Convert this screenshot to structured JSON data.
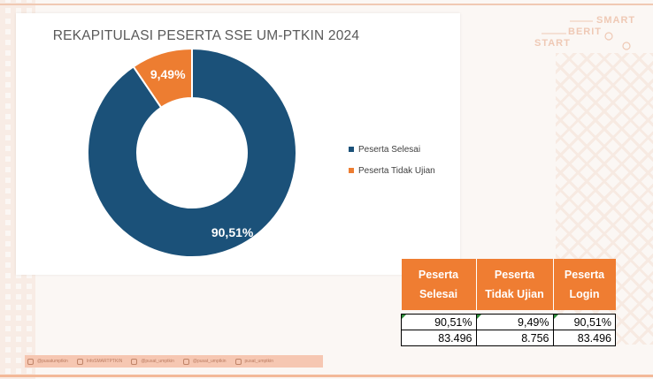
{
  "chart_data": {
    "type": "pie",
    "style": "donut",
    "title": "REKAPITULASI PESERTA SSE UM-PTKIN 2024",
    "slices": [
      {
        "name": "Peserta Selesai",
        "value": 90.51,
        "label": "90,51%",
        "color": "#1b5179"
      },
      {
        "name": "Peserta Tidak Ujian",
        "value": 9.49,
        "label": "9,49%",
        "color": "#ed7d31"
      }
    ],
    "legend_position": "right"
  },
  "table": {
    "headers": [
      {
        "line1": "Peserta",
        "line2": "Selesai"
      },
      {
        "line1": "Peserta",
        "line2": "Tidak Ujian"
      },
      {
        "line1": "Peserta",
        "line2": "Login"
      }
    ],
    "rows": [
      [
        "90,51%",
        "9,49%",
        "90,51%"
      ],
      [
        "83.496",
        "8.756",
        "83.496"
      ]
    ]
  },
  "logo": {
    "line1": "SMART",
    "line2": "BERIT",
    "line3": "START"
  },
  "social": {
    "items": [
      {
        "icon": "instagram-icon",
        "text": "@pusatumptkin"
      },
      {
        "icon": "facebook-icon",
        "text": "InfoSMARTPTKIN"
      },
      {
        "icon": "x-icon",
        "text": "@pusat_umptkin"
      },
      {
        "icon": "instagram-icon",
        "text": "@pusat_umptkin"
      },
      {
        "icon": "youtube-icon",
        "text": "pusat_umptkin"
      }
    ]
  },
  "colors": {
    "accent": "#ed7d31",
    "primary": "#1b5179"
  }
}
